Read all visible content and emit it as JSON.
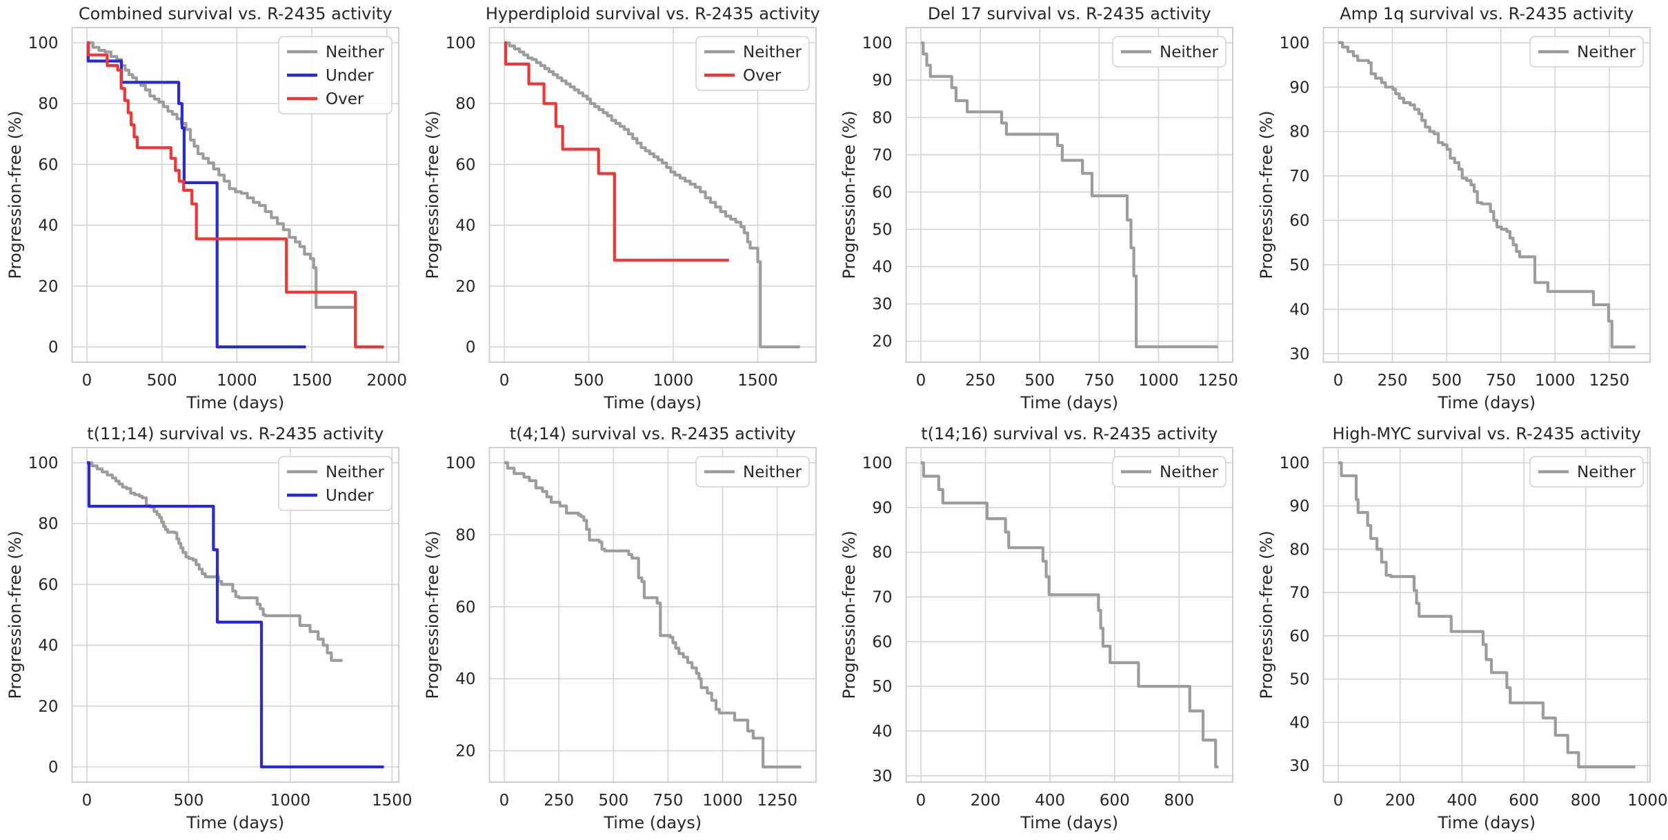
{
  "figure": {
    "rows": 2,
    "cols": 4,
    "background": "#ffffff"
  },
  "style": {
    "text_color": "#262626",
    "grid_color": "#d3d3d3",
    "spine_color": "#c9c9c9",
    "legend_border": "#d0d0d0",
    "legend_fill": "#ffffff",
    "series_colors": {
      "Neither": "#9c9c9c",
      "Under": "#2828dc",
      "Over": "#f13535"
    }
  },
  "chart_data": [
    {
      "id": "combined",
      "type": "line",
      "title": "Combined survival vs. R-2435 activity",
      "xlabel": "Time (days)",
      "ylabel": "Progression-free (%)",
      "xlim": [
        -99,
        2079
      ],
      "ylim": [
        -5,
        105
      ],
      "xticks": [
        0,
        500,
        1000,
        1500,
        2000
      ],
      "yticks": [
        0,
        20,
        40,
        60,
        80,
        100
      ],
      "grid": true,
      "legend_position": "upper-right",
      "series": [
        {
          "name": "Neither",
          "color": "#9c9c9c",
          "step": "post",
          "x": [
            0,
            40,
            80,
            120,
            160,
            200,
            230,
            255,
            280,
            305,
            330,
            360,
            390,
            420,
            450,
            480,
            510,
            540,
            570,
            600,
            630,
            660,
            690,
            715,
            740,
            775,
            810,
            845,
            880,
            915,
            950,
            990,
            1030,
            1070,
            1110,
            1150,
            1190,
            1230,
            1270,
            1310,
            1350,
            1390,
            1420,
            1450,
            1490,
            1512,
            1528,
            1780
          ],
          "y": [
            100,
            98.5,
            97.5,
            97,
            95.5,
            94.5,
            92.5,
            91,
            89.5,
            88.5,
            87,
            86,
            84.5,
            82.5,
            81.5,
            80.5,
            79,
            77.5,
            76.5,
            75,
            73.5,
            71.5,
            68,
            66,
            63.5,
            62,
            60.5,
            58.5,
            56.5,
            54.5,
            52,
            51,
            50.5,
            49,
            47.5,
            46.5,
            44.5,
            42.5,
            40.5,
            38.5,
            36,
            34.5,
            33,
            30.5,
            29,
            26,
            13,
            13
          ]
        },
        {
          "name": "Under",
          "color": "#2828dc",
          "step": "post",
          "x": [
            0,
            8,
            230,
            612,
            634,
            648,
            868,
            1460
          ],
          "y": [
            100,
            94,
            87,
            80,
            72,
            54,
            0,
            0
          ]
        },
        {
          "name": "Over",
          "color": "#f13535",
          "step": "post",
          "x": [
            0,
            10,
            135,
            205,
            228,
            252,
            275,
            295,
            315,
            335,
            560,
            590,
            615,
            645,
            700,
            730,
            1330,
            1790,
            1980
          ],
          "y": [
            100,
            96,
            92.5,
            91,
            85,
            81,
            77,
            73,
            69,
            65.5,
            62,
            58,
            54.5,
            51.5,
            47,
            35.5,
            18,
            0,
            0
          ]
        }
      ]
    },
    {
      "id": "hyperdiploid",
      "type": "line",
      "title": "Hyperdiploid survival vs. R-2435 activity",
      "xlabel": "Time (days)",
      "ylabel": "Progression-free (%)",
      "xlim": [
        -88,
        1845
      ],
      "ylim": [
        -5,
        105
      ],
      "xticks": [
        0,
        500,
        1000,
        1500
      ],
      "yticks": [
        0,
        20,
        40,
        60,
        80,
        100
      ],
      "grid": true,
      "legend_position": "upper-right",
      "series": [
        {
          "name": "Neither",
          "color": "#9c9c9c",
          "step": "post",
          "x": [
            0,
            30,
            60,
            90,
            115,
            140,
            165,
            190,
            215,
            240,
            265,
            290,
            315,
            340,
            365,
            390,
            415,
            440,
            465,
            490,
            510,
            535,
            560,
            585,
            610,
            635,
            660,
            685,
            710,
            735,
            760,
            785,
            810,
            835,
            860,
            885,
            910,
            935,
            960,
            985,
            1010,
            1040,
            1070,
            1100,
            1130,
            1160,
            1190,
            1220,
            1250,
            1280,
            1310,
            1340,
            1370,
            1400,
            1420,
            1440,
            1455,
            1500,
            1515,
            1750
          ],
          "y": [
            100,
            99,
            98,
            97,
            96,
            95,
            94.5,
            93.5,
            92.5,
            91.5,
            90.5,
            89.5,
            88.5,
            87.5,
            86.5,
            85.5,
            84.5,
            83.5,
            82.5,
            81.5,
            80,
            79,
            78,
            77,
            76,
            74.5,
            73.5,
            72.5,
            71.5,
            70,
            68.5,
            67,
            65.5,
            64.5,
            63.5,
            62.5,
            61.5,
            60.5,
            59,
            57.5,
            56.5,
            55.5,
            54.5,
            53.5,
            52.5,
            51,
            49,
            47.5,
            46,
            44.5,
            43,
            42,
            41,
            39.5,
            37.5,
            34.5,
            32.5,
            28,
            0,
            0
          ]
        },
        {
          "name": "Over",
          "color": "#f13535",
          "step": "post",
          "x": [
            0,
            8,
            145,
            235,
            305,
            345,
            558,
            652,
            1330
          ],
          "y": [
            100,
            93,
            86.5,
            80,
            72.5,
            65,
            57,
            28.5,
            28.5
          ]
        }
      ]
    },
    {
      "id": "del17",
      "type": "line",
      "title": "Del 17 survival vs. R-2435 activity",
      "xlabel": "Time (days)",
      "ylabel": "Progression-free (%)",
      "xlim": [
        -62,
        1312
      ],
      "ylim": [
        14.4,
        104.1
      ],
      "xticks": [
        0,
        250,
        500,
        750,
        1000,
        1250
      ],
      "yticks": [
        20,
        30,
        40,
        50,
        60,
        70,
        80,
        90,
        100
      ],
      "grid": true,
      "legend_position": "upper-right",
      "series": [
        {
          "name": "Neither",
          "color": "#9c9c9c",
          "step": "post",
          "x": [
            0,
            10,
            25,
            40,
            130,
            148,
            195,
            340,
            360,
            575,
            595,
            680,
            720,
            868,
            884,
            896,
            906,
            1250
          ],
          "y": [
            100,
            97,
            94,
            91,
            88,
            84.5,
            81.5,
            78.5,
            75.5,
            72.5,
            68.5,
            65,
            59,
            52.5,
            45,
            37.5,
            18.5,
            18.5
          ]
        }
      ]
    },
    {
      "id": "amp1q",
      "type": "line",
      "title": "Amp 1q survival vs. R-2435 activity",
      "xlabel": "Time (days)",
      "ylabel": "Progression-free (%)",
      "xlim": [
        -68,
        1438
      ],
      "ylim": [
        28.1,
        103.4
      ],
      "xticks": [
        0,
        250,
        500,
        750,
        1000,
        1250
      ],
      "yticks": [
        30,
        40,
        50,
        60,
        70,
        80,
        90,
        100
      ],
      "grid": true,
      "legend_position": "upper-right",
      "series": [
        {
          "name": "Neither",
          "color": "#9c9c9c",
          "step": "post",
          "x": [
            0,
            20,
            45,
            70,
            90,
            140,
            152,
            172,
            200,
            218,
            252,
            265,
            282,
            302,
            332,
            352,
            372,
            386,
            402,
            422,
            442,
            462,
            482,
            502,
            517,
            537,
            557,
            572,
            592,
            612,
            627,
            642,
            662,
            702,
            717,
            732,
            752,
            777,
            792,
            807,
            822,
            837,
            907,
            967,
            1177,
            1247,
            1262,
            1370
          ],
          "y": [
            100,
            99,
            98,
            97,
            96,
            95.5,
            93,
            92,
            91,
            90,
            89.5,
            88.5,
            87.5,
            86.5,
            86,
            85,
            84,
            82.5,
            81,
            80,
            79.5,
            77.5,
            77,
            76,
            74,
            73,
            71.5,
            69.5,
            69,
            68,
            66.5,
            64,
            63.7,
            62,
            60,
            58.5,
            58,
            57.5,
            56,
            54.5,
            53,
            51.8,
            46,
            44,
            41,
            37.3,
            31.5,
            31.5
          ]
        }
      ]
    },
    {
      "id": "t11-14",
      "type": "line",
      "title": "t(11;14) survival vs. R-2435 activity",
      "xlabel": "Time (days)",
      "ylabel": "Progression-free (%)",
      "xlim": [
        -73,
        1533
      ],
      "ylim": [
        -5,
        105
      ],
      "xticks": [
        0,
        500,
        1000,
        1500
      ],
      "yticks": [
        0,
        20,
        40,
        60,
        80,
        100
      ],
      "grid": true,
      "legend_position": "upper-right",
      "series": [
        {
          "name": "Neither",
          "color": "#9c9c9c",
          "step": "post",
          "x": [
            0,
            25,
            50,
            75,
            100,
            125,
            142,
            158,
            175,
            195,
            215,
            235,
            258,
            272,
            292,
            312,
            330,
            345,
            357,
            367,
            377,
            387,
            397,
            432,
            442,
            452,
            462,
            472,
            487,
            502,
            522,
            537,
            552,
            567,
            582,
            647,
            662,
            717,
            732,
            747,
            837,
            852,
            867,
            877,
            1047,
            1097,
            1137,
            1162,
            1182,
            1202,
            1257
          ],
          "y": [
            100,
            99,
            98,
            97,
            96,
            95,
            94,
            93,
            92,
            91.5,
            90,
            89.5,
            89,
            88.5,
            86,
            85.5,
            84,
            83,
            82,
            80.5,
            79,
            78,
            77.2,
            77,
            75,
            73.5,
            72,
            70.5,
            69,
            68.5,
            68,
            66.5,
            65,
            63.5,
            62.5,
            61,
            60,
            57.8,
            56,
            55.6,
            53.5,
            52,
            50,
            49.7,
            46.5,
            44.5,
            42,
            40,
            37.5,
            35,
            35
          ]
        },
        {
          "name": "Under",
          "color": "#2828dc",
          "step": "post",
          "x": [
            0,
            10,
            622,
            641,
            858,
            1460
          ],
          "y": [
            100,
            85.7,
            71.4,
            47.6,
            0,
            0
          ]
        }
      ]
    },
    {
      "id": "t4-14",
      "type": "line",
      "title": "t(4;14) survival vs. R-2435 activity",
      "xlabel": "Time (days)",
      "ylabel": "Progression-free (%)",
      "xlim": [
        -68,
        1428
      ],
      "ylim": [
        11.3,
        104.2
      ],
      "xticks": [
        0,
        250,
        500,
        750,
        1000,
        1250
      ],
      "yticks": [
        20,
        40,
        60,
        80,
        100
      ],
      "grid": true,
      "legend_position": "upper-right",
      "series": [
        {
          "name": "Neither",
          "color": "#9c9c9c",
          "step": "post",
          "x": [
            0,
            15,
            45,
            90,
            115,
            145,
            175,
            195,
            215,
            255,
            285,
            340,
            352,
            365,
            377,
            390,
            435,
            447,
            460,
            570,
            585,
            615,
            630,
            641,
            700,
            715,
            760,
            772,
            785,
            800,
            820,
            840,
            860,
            880,
            892,
            902,
            930,
            950,
            970,
            985,
            1055,
            1115,
            1140,
            1185,
            1360
          ],
          "y": [
            100,
            98.5,
            97,
            96,
            95,
            93,
            92,
            90.5,
            89,
            88,
            86,
            85.5,
            85,
            84,
            81.5,
            78.5,
            78,
            76,
            75.5,
            74.5,
            73.5,
            68,
            67,
            62.5,
            61,
            52,
            51.5,
            50,
            48.5,
            47,
            46,
            44.5,
            43,
            41.5,
            40,
            37.5,
            36,
            34,
            31.5,
            30.5,
            28.5,
            25.5,
            23.5,
            15.5,
            15.5
          ]
        }
      ]
    },
    {
      "id": "t14-16",
      "type": "line",
      "title": "t(14;16) survival vs. R-2435 activity",
      "xlabel": "Time (days)",
      "ylabel": "Progression-free (%)",
      "xlim": [
        -46,
        966
      ],
      "ylim": [
        28.6,
        103.4
      ],
      "xticks": [
        0,
        200,
        400,
        600,
        800
      ],
      "yticks": [
        30,
        40,
        50,
        60,
        70,
        80,
        90,
        100
      ],
      "grid": true,
      "legend_position": "upper-right",
      "series": [
        {
          "name": "Neither",
          "color": "#9c9c9c",
          "step": "post",
          "x": [
            0,
            8,
            55,
            68,
            205,
            262,
            272,
            378,
            388,
            397,
            550,
            557,
            564,
            586,
            674,
            833,
            874,
            913,
            922
          ],
          "y": [
            100,
            97,
            94,
            91,
            87.5,
            84.5,
            81,
            78,
            74.5,
            70.5,
            67,
            63,
            59,
            55.3,
            50,
            44.5,
            38,
            32,
            32
          ]
        }
      ]
    },
    {
      "id": "high-myc",
      "type": "line",
      "title": "High-MYC survival vs. R-2435 activity",
      "xlabel": "Time (days)",
      "ylabel": "Progression-free (%)",
      "xlim": [
        -48,
        1008
      ],
      "ylim": [
        26.2,
        103.5
      ],
      "xticks": [
        0,
        200,
        400,
        600,
        800,
        1000
      ],
      "yticks": [
        30,
        40,
        50,
        60,
        70,
        80,
        90,
        100
      ],
      "grid": true,
      "legend_position": "upper-right",
      "series": [
        {
          "name": "Neither",
          "color": "#9c9c9c",
          "step": "post",
          "x": [
            0,
            10,
            58,
            64,
            95,
            105,
            125,
            140,
            155,
            170,
            245,
            253,
            261,
            365,
            468,
            478,
            495,
            545,
            556,
            662,
            702,
            742,
            777,
            960
          ],
          "y": [
            100,
            97,
            91.5,
            88.5,
            85.5,
            82.5,
            80,
            77,
            74,
            73.7,
            70.5,
            67.5,
            64.5,
            61,
            58,
            54.5,
            51.5,
            48,
            44.5,
            41,
            37,
            33,
            29.7,
            29.7
          ]
        }
      ]
    }
  ]
}
